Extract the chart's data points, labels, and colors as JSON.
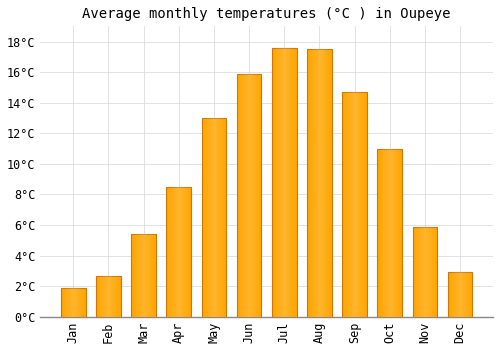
{
  "title": "Average monthly temperatures (°C ) in Oupeye",
  "months": [
    "Jan",
    "Feb",
    "Mar",
    "Apr",
    "May",
    "Jun",
    "Jul",
    "Aug",
    "Sep",
    "Oct",
    "Nov",
    "Dec"
  ],
  "values": [
    1.9,
    2.7,
    5.4,
    8.5,
    13.0,
    15.9,
    17.6,
    17.5,
    14.7,
    11.0,
    5.9,
    2.9
  ],
  "bar_color": "#FFA500",
  "bar_edge_color": "#CC7700",
  "background_color": "#FFFFFF",
  "plot_bg_color": "#FFFFFF",
  "grid_color": "#DDDDDD",
  "ylim": [
    0,
    19
  ],
  "yticks": [
    0,
    2,
    4,
    6,
    8,
    10,
    12,
    14,
    16,
    18
  ],
  "title_fontsize": 10,
  "tick_fontsize": 8.5,
  "font_family": "monospace"
}
